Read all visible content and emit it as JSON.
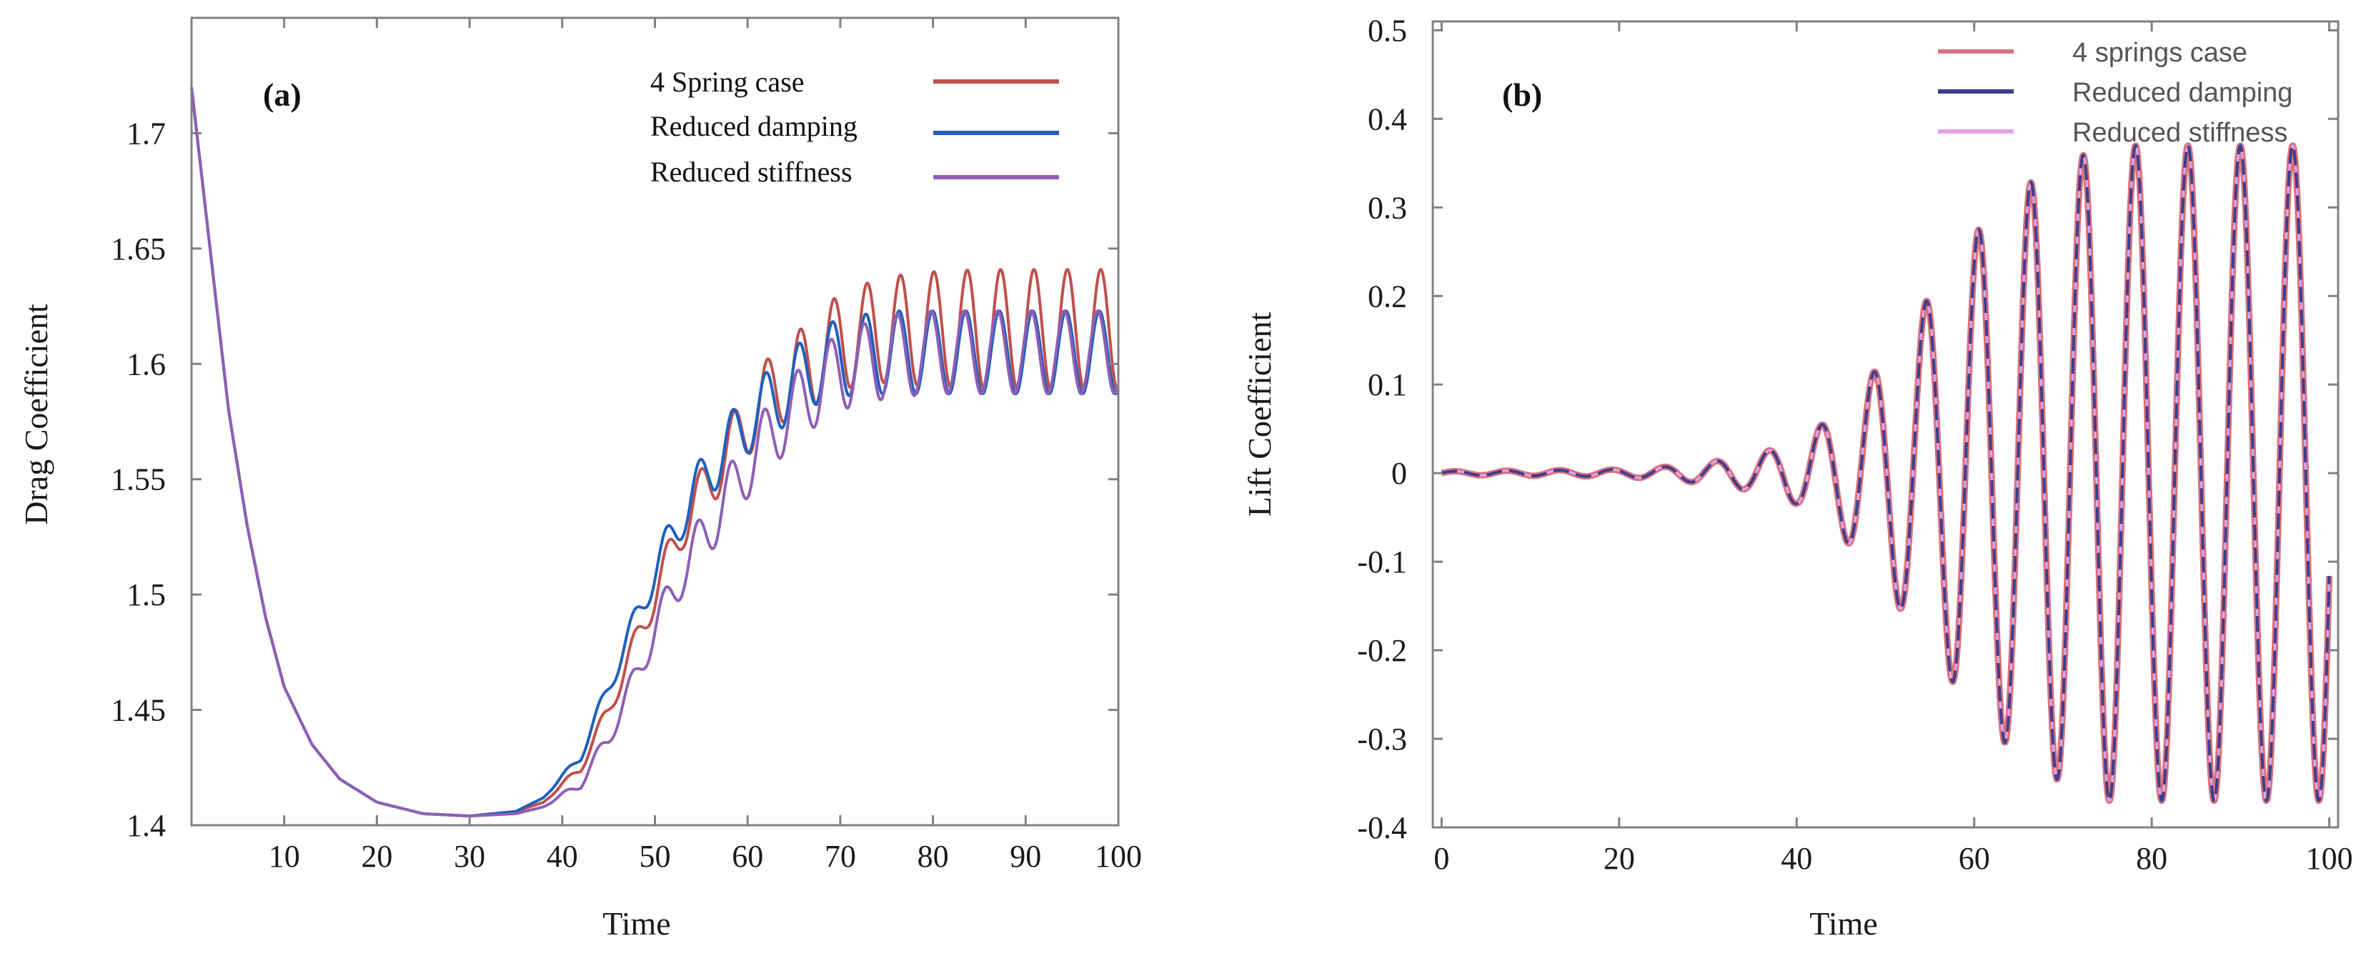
{
  "chart_data": [
    {
      "type": "line",
      "panel_label": "(a)",
      "xlabel": "Time",
      "ylabel": "Drag Coefficient",
      "xlim": [
        0,
        100
      ],
      "ylim": [
        1.4,
        1.75
      ],
      "xticks": [
        10,
        20,
        30,
        40,
        50,
        60,
        70,
        80,
        90,
        100
      ],
      "xtick_labels": [
        "10",
        "20",
        "30",
        "40",
        "50",
        "60",
        "70",
        "80",
        "90",
        "100"
      ],
      "yticks": [
        1.4,
        1.45,
        1.5,
        1.55,
        1.6,
        1.65,
        1.7
      ],
      "ytick_labels": [
        "1.4",
        "1.45",
        "1.5",
        "1.55",
        "1.6",
        "1.65",
        "1.7"
      ],
      "grid": false,
      "legend_position": "top-right",
      "series": [
        {
          "name": "4 Spring case",
          "color": "#c0504d",
          "x": [
            0,
            2,
            4,
            6,
            8,
            10,
            13,
            16,
            20,
            25,
            30,
            35,
            38,
            42,
            45,
            48,
            50,
            53,
            56,
            60,
            63,
            67,
            70,
            75,
            80,
            85,
            90,
            95,
            100
          ],
          "y": [
            1.72,
            1.65,
            1.58,
            1.53,
            1.49,
            1.46,
            1.435,
            1.42,
            1.41,
            1.405,
            1.404,
            1.406,
            1.41,
            1.425,
            1.45,
            1.48,
            1.5,
            1.53,
            1.55,
            1.575,
            1.59,
            1.6,
            1.61,
            1.615,
            1.615,
            1.615,
            1.615,
            1.615,
            1.615
          ],
          "oscillation": [
            0,
            0,
            0,
            0,
            0,
            0,
            0,
            0,
            0,
            0,
            0,
            0,
            0,
            0.002,
            0.004,
            0.006,
            0.008,
            0.01,
            0.012,
            0.015,
            0.017,
            0.019,
            0.021,
            0.023,
            0.025,
            0.026,
            0.026,
            0.026,
            0.026
          ]
        },
        {
          "name": "Reduced damping",
          "color": "#1f5fbf",
          "x": [
            0,
            2,
            4,
            6,
            8,
            10,
            13,
            16,
            20,
            25,
            30,
            35,
            38,
            42,
            45,
            48,
            50,
            53,
            56,
            60,
            63,
            67,
            70,
            75,
            80,
            85,
            90,
            95,
            100
          ],
          "y": [
            1.72,
            1.65,
            1.58,
            1.53,
            1.49,
            1.46,
            1.435,
            1.42,
            1.41,
            1.405,
            1.404,
            1.406,
            1.412,
            1.43,
            1.46,
            1.49,
            1.51,
            1.535,
            1.555,
            1.575,
            1.585,
            1.598,
            1.603,
            1.605,
            1.605,
            1.605,
            1.605,
            1.605,
            1.605
          ],
          "oscillation": [
            0,
            0,
            0,
            0,
            0,
            0,
            0,
            0,
            0,
            0,
            0,
            0,
            0,
            0.002,
            0.004,
            0.006,
            0.008,
            0.01,
            0.012,
            0.014,
            0.015,
            0.016,
            0.017,
            0.018,
            0.018,
            0.018,
            0.018,
            0.018,
            0.018
          ]
        },
        {
          "name": "Reduced stiffness",
          "color": "#8e5fb5",
          "x": [
            0,
            2,
            4,
            6,
            8,
            10,
            13,
            16,
            20,
            25,
            30,
            35,
            38,
            42,
            45,
            48,
            50,
            53,
            56,
            60,
            63,
            67,
            70,
            75,
            80,
            85,
            90,
            95,
            100
          ],
          "y": [
            1.72,
            1.65,
            1.58,
            1.53,
            1.49,
            1.46,
            1.435,
            1.42,
            1.41,
            1.405,
            1.404,
            1.405,
            1.408,
            1.418,
            1.438,
            1.465,
            1.485,
            1.51,
            1.53,
            1.556,
            1.572,
            1.588,
            1.597,
            1.603,
            1.605,
            1.605,
            1.605,
            1.605,
            1.605
          ],
          "oscillation": [
            0,
            0,
            0,
            0,
            0,
            0,
            0,
            0,
            0,
            0,
            0,
            0,
            0,
            0.002,
            0.004,
            0.006,
            0.008,
            0.01,
            0.012,
            0.014,
            0.015,
            0.016,
            0.017,
            0.018,
            0.018,
            0.018,
            0.018,
            0.018,
            0.018
          ]
        }
      ]
    },
    {
      "type": "line",
      "panel_label": "(b)",
      "xlabel": "Time",
      "ylabel": "Lift Coefficient",
      "xlim": [
        -1,
        101
      ],
      "ylim": [
        -0.4,
        0.51
      ],
      "xticks": [
        0,
        20,
        40,
        60,
        80,
        100
      ],
      "xtick_labels": [
        "0",
        "20",
        "40",
        "60",
        "80",
        "100"
      ],
      "yticks": [
        -0.4,
        -0.3,
        -0.2,
        -0.1,
        0,
        0.1,
        0.2,
        0.3,
        0.4,
        0.5
      ],
      "ytick_labels": [
        "-0.4",
        "-0.3",
        "-0.2",
        "-0.1",
        "0",
        "0.1",
        "0.2",
        "0.3",
        "0.4",
        "0.5"
      ],
      "grid": false,
      "legend_position": "top-right",
      "series": [
        {
          "name": "4 springs case",
          "color": "#d9737f",
          "x": [
            0,
            10,
            20,
            25,
            30,
            35,
            40,
            45,
            50,
            55,
            60,
            65,
            70,
            75,
            80,
            85,
            90,
            95,
            100
          ],
          "amplitude": [
            0.002,
            0.003,
            0.004,
            0.007,
            0.012,
            0.02,
            0.035,
            0.07,
            0.13,
            0.2,
            0.27,
            0.32,
            0.35,
            0.37,
            0.37,
            0.37,
            0.37,
            0.37,
            0.37
          ]
        },
        {
          "name": "Reduced damping",
          "color": "#3b3f8f",
          "x": [
            0,
            10,
            20,
            25,
            30,
            35,
            40,
            45,
            50,
            55,
            60,
            65,
            70,
            75,
            80,
            85,
            90,
            95,
            100
          ],
          "amplitude": [
            0.002,
            0.003,
            0.004,
            0.007,
            0.012,
            0.02,
            0.035,
            0.07,
            0.13,
            0.2,
            0.27,
            0.32,
            0.35,
            0.37,
            0.37,
            0.37,
            0.37,
            0.37,
            0.37
          ]
        },
        {
          "name": "Reduced stiffness",
          "color": "#e3a3e6",
          "x": [
            0,
            10,
            20,
            25,
            30,
            35,
            40,
            45,
            50,
            55,
            60,
            65,
            70,
            75,
            80,
            85,
            90,
            95,
            100
          ],
          "amplitude": [
            0.002,
            0.003,
            0.004,
            0.007,
            0.012,
            0.02,
            0.035,
            0.07,
            0.13,
            0.2,
            0.27,
            0.32,
            0.35,
            0.37,
            0.37,
            0.37,
            0.37,
            0.37,
            0.37
          ]
        }
      ]
    }
  ]
}
